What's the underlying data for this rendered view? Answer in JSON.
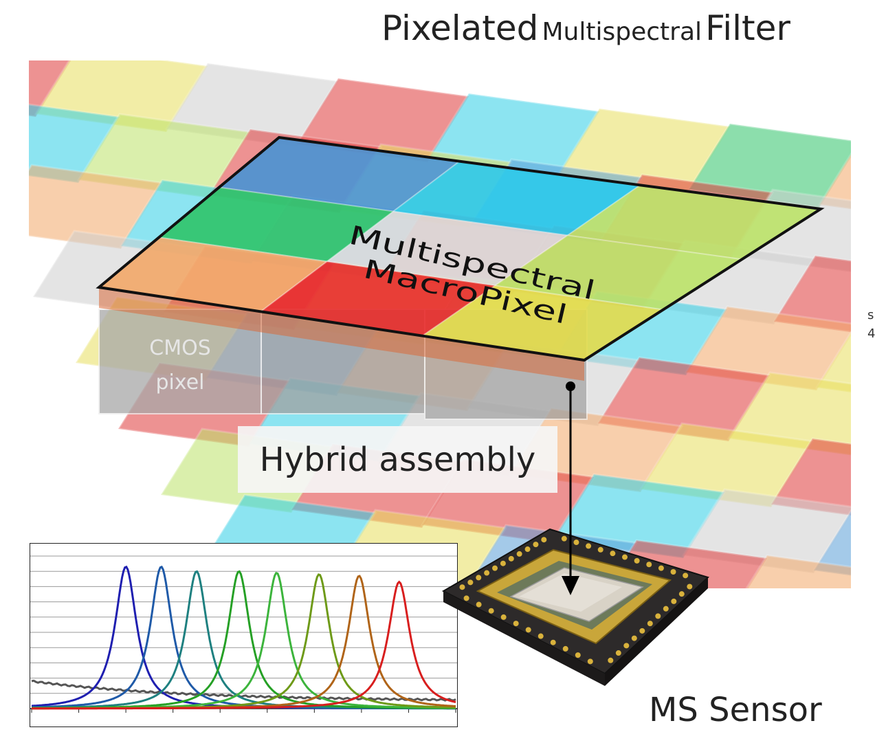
{
  "header": {
    "title_part1": "Pixelated",
    "title_part2": "Multispectral",
    "title_part3": "Filter"
  },
  "macropixel": {
    "line1": "Multispectral",
    "line2": "MacroPixel"
  },
  "cmos": {
    "line1": "CMOS",
    "line2": "pixel"
  },
  "annotations": {
    "hybrid_assembly": "Hybrid assembly",
    "sensor": "MS Sensor",
    "left_edge_glyph_1": "s",
    "left_edge_glyph_2": "4"
  },
  "colors": {
    "red": "#e03a3a",
    "orange": "#f3a96a",
    "yellow": "#e9e05e",
    "green": "#2fc46a",
    "cyan": "#2fcfe6",
    "blue": "#5b9fd8",
    "lightgreen": "#bde36a",
    "grey": "#cfcfcf"
  },
  "chart_data": {
    "type": "line",
    "title": "",
    "xlabel": "",
    "ylabel": "",
    "xlim": [
      0,
      9
    ],
    "ylim": [
      0,
      10
    ],
    "grid": true,
    "legend": "none",
    "series": [
      {
        "color": "#1f1fb0",
        "peak_x": 2.0,
        "peak_y": 9.3,
        "width": 0.28
      },
      {
        "color": "#1f5aa8",
        "peak_x": 2.75,
        "peak_y": 9.3,
        "width": 0.28
      },
      {
        "color": "#1e8080",
        "peak_x": 3.5,
        "peak_y": 9.0,
        "width": 0.28
      },
      {
        "color": "#25a025",
        "peak_x": 4.4,
        "peak_y": 9.0,
        "width": 0.28
      },
      {
        "color": "#3cb43c",
        "peak_x": 5.2,
        "peak_y": 8.9,
        "width": 0.28
      },
      {
        "color": "#6e9a18",
        "peak_x": 6.1,
        "peak_y": 8.8,
        "width": 0.28
      },
      {
        "color": "#b06418",
        "peak_x": 6.95,
        "peak_y": 8.7,
        "width": 0.28
      },
      {
        "color": "#d81e1e",
        "peak_x": 7.8,
        "peak_y": 8.3,
        "width": 0.28
      }
    ],
    "baseline": {
      "color": "#555555",
      "start_y": 1.8,
      "end_y": 0.5
    }
  }
}
